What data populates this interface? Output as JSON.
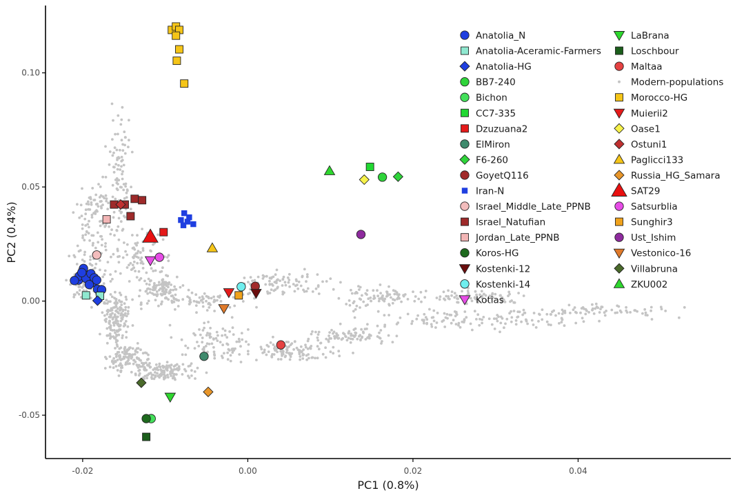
{
  "chart_data": {
    "type": "scatter",
    "xlabel": "PC1 (0.8%)",
    "ylabel": "PC2 (0.4%)",
    "xlim": [
      -0.0245,
      0.0585
    ],
    "ylim": [
      -0.069,
      0.1295
    ],
    "xticks": [
      {
        "value": -0.02,
        "label": "-0.02"
      },
      {
        "value": 0.0,
        "label": "0.00"
      },
      {
        "value": 0.02,
        "label": "0.02"
      },
      {
        "value": 0.04,
        "label": "0.04"
      }
    ],
    "yticks": [
      {
        "value": -0.05,
        "label": "-0.05"
      },
      {
        "value": 0.0,
        "label": "0.00"
      },
      {
        "value": 0.05,
        "label": "0.05"
      },
      {
        "value": 0.1,
        "label": "0.10"
      }
    ],
    "grid": false,
    "legend": "top-right, two columns",
    "background_points": {
      "name": "Modern-populations",
      "color": "#c4c4c4",
      "clusters": [
        {
          "cx": -0.0155,
          "cy": 0.055,
          "rx": 0.0012,
          "ry": 0.025,
          "n": 90
        },
        {
          "cx": -0.0185,
          "cy": 0.03,
          "rx": 0.0022,
          "ry": 0.018,
          "n": 90
        },
        {
          "cx": -0.0195,
          "cy": 0.008,
          "rx": 0.0018,
          "ry": 0.008,
          "n": 90
        },
        {
          "cx": -0.016,
          "cy": -0.008,
          "rx": 0.0015,
          "ry": 0.01,
          "n": 150
        },
        {
          "cx": -0.0145,
          "cy": -0.025,
          "rx": 0.002,
          "ry": 0.006,
          "n": 120
        },
        {
          "cx": -0.01,
          "cy": -0.031,
          "rx": 0.0035,
          "ry": 0.004,
          "n": 120
        },
        {
          "cx": -0.0105,
          "cy": 0.005,
          "rx": 0.0025,
          "ry": 0.006,
          "n": 110
        },
        {
          "cx": -0.013,
          "cy": 0.02,
          "rx": 0.003,
          "ry": 0.01,
          "n": 80
        },
        {
          "cx": -0.004,
          "cy": -0.018,
          "rx": 0.004,
          "ry": 0.008,
          "n": 90
        },
        {
          "cx": 0.005,
          "cy": -0.022,
          "rx": 0.005,
          "ry": 0.004,
          "n": 110
        },
        {
          "cx": 0.012,
          "cy": -0.015,
          "rx": 0.005,
          "ry": 0.003,
          "n": 80
        },
        {
          "cx": 0.028,
          "cy": -0.008,
          "rx": 0.014,
          "ry": 0.004,
          "n": 130
        },
        {
          "cx": 0.004,
          "cy": 0.008,
          "rx": 0.005,
          "ry": 0.005,
          "n": 90
        },
        {
          "cx": 0.016,
          "cy": 0.002,
          "rx": 0.005,
          "ry": 0.004,
          "n": 80
        },
        {
          "cx": 0.027,
          "cy": 0.002,
          "rx": 0.006,
          "ry": 0.003,
          "n": 80
        },
        {
          "cx": 0.042,
          "cy": -0.004,
          "rx": 0.008,
          "ry": 0.002,
          "n": 70
        },
        {
          "cx": -0.0055,
          "cy": 0.0,
          "rx": 0.004,
          "ry": 0.004,
          "n": 70
        },
        {
          "cx": -0.0175,
          "cy": 0.043,
          "rx": 0.002,
          "ry": 0.004,
          "n": 30
        }
      ]
    },
    "series": [
      {
        "name": "Anatolia_N",
        "shape": "circle",
        "color": "#1f3fe0",
        "points": [
          [
            -0.0205,
            0.0092
          ],
          [
            -0.0199,
            0.0143
          ],
          [
            -0.0194,
            0.0112
          ],
          [
            -0.0188,
            0.0082
          ],
          [
            -0.0182,
            0.0052
          ],
          [
            -0.0177,
            0.005
          ],
          [
            -0.0204,
            0.011
          ],
          [
            -0.0196,
            0.01
          ],
          [
            -0.019,
            0.012
          ],
          [
            -0.0186,
            0.0102
          ],
          [
            -0.021,
            0.009
          ],
          [
            -0.0192,
            0.0072
          ],
          [
            -0.0201,
            0.0125
          ],
          [
            -0.0183,
            0.0092
          ]
        ]
      },
      {
        "name": "Anatolia-Aceramic-Farmers",
        "shape": "square",
        "color": "#8fe8d0",
        "points": [
          [
            -0.0196,
            0.0025
          ],
          [
            -0.0179,
            0.0023
          ]
        ]
      },
      {
        "name": "Anatolia-HG",
        "shape": "diamond",
        "color": "#1f3fe0",
        "points": [
          [
            -0.0182,
            0.0002
          ]
        ]
      },
      {
        "name": "BB7-240",
        "shape": "circle",
        "color": "#2fd43a",
        "points": [
          [
            0.0163,
            0.0543
          ]
        ]
      },
      {
        "name": "Bichon",
        "shape": "circle",
        "color": "#43e05a",
        "points": [
          [
            -0.0117,
            -0.0515
          ]
        ]
      },
      {
        "name": "CC7-335",
        "shape": "square",
        "color": "#21d832",
        "points": [
          [
            0.0148,
            0.0588
          ]
        ]
      },
      {
        "name": "Dzuzuana2",
        "shape": "square",
        "color": "#e51a1a",
        "points": [
          [
            -0.0102,
            0.0302
          ]
        ]
      },
      {
        "name": "ElMiron",
        "shape": "circle",
        "color": "#3f8a6d",
        "points": [
          [
            -0.0053,
            -0.0242
          ]
        ]
      },
      {
        "name": "F6-260",
        "shape": "diamond",
        "color": "#2fd43a",
        "points": [
          [
            0.0182,
            0.0545
          ]
        ]
      },
      {
        "name": "GoyetQ116",
        "shape": "circle",
        "color": "#a12a2a",
        "points": [
          [
            0.0009,
            0.0065
          ]
        ]
      },
      {
        "name": "Iran-N",
        "shape": "smallsquare",
        "color": "#1f3fe0",
        "points": [
          [
            -0.0077,
            0.0385
          ],
          [
            -0.0081,
            0.0355
          ],
          [
            -0.0073,
            0.0348
          ],
          [
            -0.0066,
            0.0337
          ],
          [
            -0.0078,
            0.0332
          ],
          [
            -0.0071,
            0.0367
          ]
        ]
      },
      {
        "name": "Israel_Middle_Late_PPNB",
        "shape": "circle",
        "color": "#f2bcbc",
        "points": [
          [
            -0.0183,
            0.0202
          ]
        ]
      },
      {
        "name": "Israel_Natufian",
        "shape": "square",
        "color": "#9e2a2a",
        "points": [
          [
            -0.0162,
            0.0423
          ],
          [
            -0.0149,
            0.0423
          ],
          [
            -0.0137,
            0.0448
          ],
          [
            -0.0128,
            0.0442
          ],
          [
            -0.0142,
            0.0372
          ]
        ]
      },
      {
        "name": "Jordan_Late_PPNB",
        "shape": "square",
        "color": "#f2b5b5",
        "points": [
          [
            -0.0171,
            0.0358
          ]
        ]
      },
      {
        "name": "Koros-HG",
        "shape": "circle",
        "color": "#1e6a1e",
        "points": [
          [
            -0.0123,
            -0.0515
          ]
        ]
      },
      {
        "name": "Kostenki-12",
        "shape": "triangledown",
        "color": "#6b0e0e",
        "points": [
          [
            0.001,
            0.0035
          ]
        ]
      },
      {
        "name": "Kostenki-14",
        "shape": "circle",
        "color": "#6feeee",
        "points": [
          [
            -0.0008,
            0.0063
          ]
        ]
      },
      {
        "name": "Kotias",
        "shape": "triangledown",
        "color": "#e64ce6",
        "points": [
          [
            -0.0118,
            0.0178
          ]
        ]
      },
      {
        "name": "LaBrana",
        "shape": "triangledown",
        "color": "#2ed72e",
        "points": [
          [
            -0.0094,
            -0.042
          ]
        ]
      },
      {
        "name": "Loschbour",
        "shape": "square",
        "color": "#1b5e1b",
        "points": [
          [
            -0.0123,
            -0.0595
          ]
        ]
      },
      {
        "name": "Maltaa",
        "shape": "circle",
        "color": "#e54242",
        "points": [
          [
            0.004,
            -0.0192
          ]
        ]
      },
      {
        "name": "Morocco-HG",
        "shape": "square",
        "color": "#f5c518",
        "points": [
          [
            -0.0092,
            0.1188
          ],
          [
            -0.0087,
            0.1203
          ],
          [
            -0.0083,
            0.1188
          ],
          [
            -0.0087,
            0.1163
          ],
          [
            -0.0083,
            0.1103
          ],
          [
            -0.0086,
            0.1053
          ],
          [
            -0.0077,
            0.0953
          ]
        ]
      },
      {
        "name": "Muierii2",
        "shape": "triangledown",
        "color": "#e51a1a",
        "points": [
          [
            -0.0023,
            0.0038
          ]
        ]
      },
      {
        "name": "Oase1",
        "shape": "diamond",
        "color": "#f7f24a",
        "points": [
          [
            0.0141,
            0.0532
          ]
        ]
      },
      {
        "name": "Ostuni1",
        "shape": "diamond",
        "color": "#c03030",
        "points": [
          [
            -0.0154,
            0.0423
          ]
        ]
      },
      {
        "name": "Paglicci133",
        "shape": "triangle",
        "color": "#f5c518",
        "points": [
          [
            -0.0043,
            0.0232
          ]
        ]
      },
      {
        "name": "Russia_HG_Samara",
        "shape": "diamond",
        "color": "#e8962a",
        "points": [
          [
            -0.0048,
            -0.0398
          ]
        ]
      },
      {
        "name": "SAT29",
        "shape": "bigtriangle",
        "color": "#e81010",
        "points": [
          [
            -0.0118,
            0.0282
          ]
        ]
      },
      {
        "name": "Satsurblia",
        "shape": "circle",
        "color": "#e64ce6",
        "points": [
          [
            -0.0107,
            0.0192
          ]
        ]
      },
      {
        "name": "Sunghir3",
        "shape": "square",
        "color": "#f0a21c",
        "points": [
          [
            -0.0011,
            0.0025
          ]
        ]
      },
      {
        "name": "Ust_Ishim",
        "shape": "circle",
        "color": "#8e2a9e",
        "points": [
          [
            0.0137,
            0.0292
          ]
        ]
      },
      {
        "name": "Vestonico-16",
        "shape": "triangledown",
        "color": "#e07a2a",
        "points": [
          [
            -0.0029,
            -0.0032
          ]
        ]
      },
      {
        "name": "Villabruna",
        "shape": "diamond",
        "color": "#4a6a2a",
        "points": [
          [
            -0.0129,
            -0.0358
          ]
        ]
      },
      {
        "name": "ZKU002",
        "shape": "triangle",
        "color": "#2ed72e",
        "points": [
          [
            0.0099,
            0.057
          ]
        ]
      }
    ],
    "legend_col1": [
      {
        "label": "Anatolia_N",
        "shape": "circle",
        "color": "#1f3fe0"
      },
      {
        "label": "Anatolia-Aceramic-Farmers",
        "shape": "square",
        "color": "#8fe8d0"
      },
      {
        "label": "Anatolia-HG",
        "shape": "diamond",
        "color": "#1f3fe0"
      },
      {
        "label": "BB7-240",
        "shape": "circle",
        "color": "#2fd43a"
      },
      {
        "label": "Bichon",
        "shape": "circle",
        "color": "#43e05a"
      },
      {
        "label": "CC7-335",
        "shape": "square",
        "color": "#21d832"
      },
      {
        "label": "Dzuzuana2",
        "shape": "square",
        "color": "#e51a1a"
      },
      {
        "label": "ElMiron",
        "shape": "circle",
        "color": "#3f8a6d"
      },
      {
        "label": "F6-260",
        "shape": "diamond",
        "color": "#2fd43a"
      },
      {
        "label": "GoyetQ116",
        "shape": "circle",
        "color": "#a12a2a"
      },
      {
        "label": "Iran-N",
        "shape": "smallsquare",
        "color": "#1f3fe0"
      },
      {
        "label": "Israel_Middle_Late_PPNB",
        "shape": "circle",
        "color": "#f2bcbc"
      },
      {
        "label": "Israel_Natufian",
        "shape": "square",
        "color": "#9e2a2a"
      },
      {
        "label": "Jordan_Late_PPNB",
        "shape": "square",
        "color": "#f2b5b5"
      },
      {
        "label": "Koros-HG",
        "shape": "circle",
        "color": "#1e6a1e"
      },
      {
        "label": "Kostenki-12",
        "shape": "triangledown",
        "color": "#6b0e0e"
      },
      {
        "label": "Kostenki-14",
        "shape": "circle",
        "color": "#6feeee"
      },
      {
        "label": "Kotias",
        "shape": "triangledown",
        "color": "#e64ce6"
      }
    ],
    "legend_col2": [
      {
        "label": "LaBrana",
        "shape": "triangledown",
        "color": "#2ed72e"
      },
      {
        "label": "Loschbour",
        "shape": "square",
        "color": "#1b5e1b"
      },
      {
        "label": "Maltaa",
        "shape": "circle",
        "color": "#e54242"
      },
      {
        "label": "Modern-populations",
        "shape": "dot",
        "color": "#c4c4c4"
      },
      {
        "label": "Morocco-HG",
        "shape": "square",
        "color": "#f5c518"
      },
      {
        "label": "Muierii2",
        "shape": "triangledown",
        "color": "#e51a1a"
      },
      {
        "label": "Oase1",
        "shape": "diamond",
        "color": "#f7f24a"
      },
      {
        "label": "Ostuni1",
        "shape": "diamond",
        "color": "#c03030"
      },
      {
        "label": "Paglicci133",
        "shape": "triangle",
        "color": "#f5c518"
      },
      {
        "label": "Russia_HG_Samara",
        "shape": "diamond",
        "color": "#e8962a"
      },
      {
        "label": "SAT29",
        "shape": "bigtriangle",
        "color": "#e81010"
      },
      {
        "label": "Satsurblia",
        "shape": "circle",
        "color": "#e64ce6"
      },
      {
        "label": "Sunghir3",
        "shape": "square",
        "color": "#f0a21c"
      },
      {
        "label": "Ust_Ishim",
        "shape": "circle",
        "color": "#8e2a9e"
      },
      {
        "label": "Vestonico-16",
        "shape": "triangledown",
        "color": "#e07a2a"
      },
      {
        "label": "Villabruna",
        "shape": "diamond",
        "color": "#4a6a2a"
      },
      {
        "label": "ZKU002",
        "shape": "triangle",
        "color": "#2ed72e"
      }
    ]
  }
}
